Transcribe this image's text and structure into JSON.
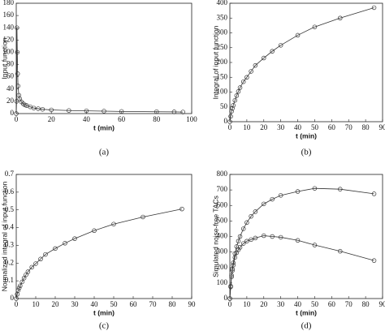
{
  "chart_data": [
    {
      "type": "line",
      "xlabel": "t (min)",
      "ylabel": "Input function",
      "caption": "(a)",
      "x": [
        0,
        0.2,
        0.4,
        0.6,
        0.8,
        1,
        1.5,
        2,
        3,
        4,
        5,
        6,
        8,
        10,
        12.5,
        15,
        20,
        30,
        40,
        50,
        60,
        80,
        90,
        95
      ],
      "series": [
        {
          "color": "#333333",
          "values": [
            0,
            20,
            140,
            100,
            65,
            45,
            30,
            24,
            19,
            16,
            14,
            13,
            11,
            9,
            8,
            7,
            6,
            5,
            4.5,
            4,
            3.5,
            3,
            2.8,
            2.5
          ]
        }
      ],
      "xlim": [
        0,
        100
      ],
      "ylim": [
        0,
        180
      ],
      "xticks": [
        0,
        20,
        40,
        60,
        80,
        100
      ],
      "yticks": [
        0,
        20,
        40,
        60,
        80,
        100,
        120,
        140,
        160,
        180
      ]
    },
    {
      "type": "line",
      "xlabel": "t (min)",
      "ylabel": "Integral of input function",
      "caption": "(b)",
      "x": [
        0,
        0.5,
        1,
        1.5,
        2,
        3,
        4,
        5,
        6,
        8,
        10,
        12.5,
        15,
        20,
        25,
        30,
        40,
        50,
        65,
        85
      ],
      "series": [
        {
          "color": "#333333",
          "values": [
            0,
            18,
            35,
            45,
            55,
            72,
            88,
            102,
            115,
            135,
            150,
            170,
            190,
            215,
            238,
            258,
            292,
            320,
            350,
            385
          ]
        }
      ],
      "xlim": [
        0,
        90
      ],
      "ylim": [
        0,
        400
      ],
      "xticks": [
        0,
        10,
        20,
        30,
        40,
        50,
        60,
        70,
        80,
        90
      ],
      "yticks": [
        0,
        50,
        100,
        150,
        200,
        250,
        300,
        350,
        400
      ]
    },
    {
      "type": "line",
      "xlabel": "t (min)",
      "ylabel": "Normalized integral of input function",
      "caption": "(c)",
      "x": [
        0,
        0.5,
        1,
        1.5,
        2,
        3,
        4,
        5,
        6,
        8,
        10,
        12.5,
        15,
        20,
        25,
        30,
        40,
        50,
        65,
        85
      ],
      "series": [
        {
          "color": "#333333",
          "values": [
            0,
            0.024,
            0.046,
            0.059,
            0.072,
            0.094,
            0.115,
            0.134,
            0.151,
            0.177,
            0.197,
            0.223,
            0.249,
            0.282,
            0.312,
            0.338,
            0.383,
            0.42,
            0.46,
            0.505
          ]
        }
      ],
      "xlim": [
        0,
        90
      ],
      "ylim": [
        0,
        0.7
      ],
      "xticks": [
        0,
        10,
        20,
        30,
        40,
        50,
        60,
        70,
        80,
        90
      ],
      "yticks": [
        0,
        0.1,
        0.2,
        0.3,
        0.4,
        0.5,
        0.6,
        0.7
      ]
    },
    {
      "type": "line",
      "xlabel": "t (min)",
      "ylabel": "Simulated noise-free TACs",
      "caption": "(d)",
      "x": [
        0,
        0.5,
        1,
        1.5,
        2,
        3,
        4,
        5,
        6,
        8,
        10,
        12.5,
        15,
        20,
        25,
        30,
        40,
        50,
        65,
        85
      ],
      "series": [
        {
          "color": "#333333",
          "values": [
            0,
            80,
            150,
            190,
            230,
            290,
            335,
            370,
            400,
            450,
            490,
            530,
            560,
            610,
            640,
            665,
            690,
            710,
            705,
            675
          ]
        },
        {
          "color": "#333333",
          "values": [
            0,
            75,
            140,
            180,
            215,
            265,
            295,
            315,
            330,
            355,
            370,
            380,
            390,
            405,
            400,
            395,
            375,
            345,
            305,
            245
          ]
        }
      ],
      "xlim": [
        0,
        90
      ],
      "ylim": [
        0,
        800
      ],
      "xticks": [
        0,
        10,
        20,
        30,
        40,
        50,
        60,
        70,
        80,
        90
      ],
      "yticks": [
        0,
        100,
        200,
        300,
        400,
        500,
        600,
        700,
        800
      ]
    }
  ]
}
